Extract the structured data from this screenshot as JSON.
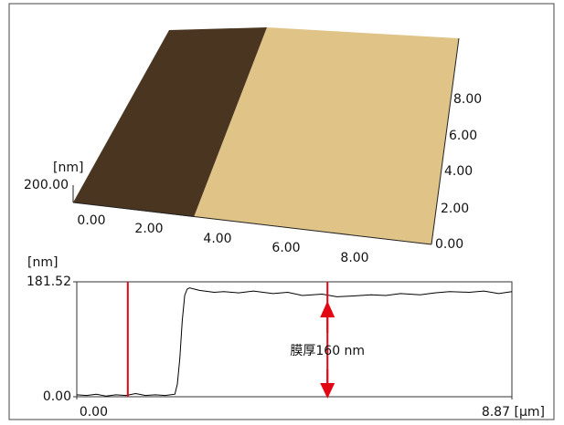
{
  "surface_plot": {
    "z_unit": "[nm]",
    "z_label": "200.00",
    "x_labels": [
      "0.00",
      "2.00",
      "4.00",
      "6.00",
      "8.00"
    ],
    "y_labels": [
      "0.00",
      "2.00",
      "4.00",
      "6.00",
      "8.00"
    ]
  },
  "chart_data": {
    "type": "line",
    "y_unit": "[nm]",
    "x_unit": "[µm]",
    "x": [
      0,
      0.2,
      0.4,
      0.6,
      0.8,
      1.0,
      1.2,
      1.4,
      1.6,
      1.8,
      2.0,
      2.05,
      2.1,
      2.15,
      2.2,
      2.25,
      2.3,
      2.5,
      2.8,
      3.0,
      3.3,
      3.6,
      4.0,
      4.3,
      4.6,
      5.0,
      5.3,
      5.6,
      6.0,
      6.3,
      6.6,
      7.0,
      7.3,
      7.6,
      8.0,
      8.3,
      8.6,
      8.87
    ],
    "series": [
      {
        "name": null,
        "color": "#000000",
        "values": [
          3,
          2,
          4,
          1,
          3,
          2,
          5,
          2,
          3,
          2,
          4,
          20,
          60,
          120,
          160,
          170,
          172,
          168,
          165,
          166,
          164,
          167,
          163,
          165,
          160,
          162,
          158,
          159,
          161,
          160,
          163,
          161,
          164,
          166,
          165,
          167,
          163,
          166
        ]
      }
    ],
    "xlim": [
      0,
      8.87
    ],
    "ylim": [
      0,
      181.52
    ],
    "xticks": [
      {
        "value": 0,
        "label": "0.00"
      },
      8.87
    ],
    "yticks": [
      {
        "value": 0,
        "label": "0.00"
      },
      181.52
    ],
    "cursors": [
      1.04,
      5.11
    ],
    "cursor_color": "#e30613",
    "annotation": "膜厚160 nm"
  }
}
